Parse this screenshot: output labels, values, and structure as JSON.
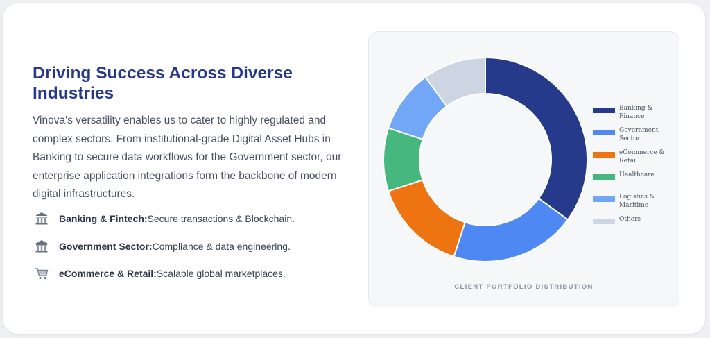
{
  "section": {
    "title": "Driving Success Across Diverse Industries",
    "description": "Vinova's versatility enables us to cater to highly regulated and complex sectors. From institutional-grade Digital Asset Hubs in Banking to secure data workflows for the Government sector, our enterprise application integrations form the backbone of modern digital infrastructures."
  },
  "features": [
    {
      "icon": "bank-icon",
      "bold": "Banking & Fintech:",
      "text": "Secure transactions & Blockchain."
    },
    {
      "icon": "government-building-icon",
      "bold": "Government Sector:",
      "text": "Compliance & data engineering."
    },
    {
      "icon": "shopping-cart-icon",
      "bold": "eCommerce & Retail:",
      "text": "Scalable global marketplaces."
    }
  ],
  "chart_data": {
    "type": "pie",
    "subtype": "doughnut",
    "caption": "CLIENT PORTFOLIO DISTRIBUTION",
    "legend_position": "right",
    "labels": [
      "Banking & Finance",
      "Government Sector",
      "eCommerce & Retail",
      "Healthcare",
      "Logistics & Maritime",
      "Others"
    ],
    "values": [
      35,
      20,
      15,
      10,
      10,
      10
    ],
    "colors": [
      "#263a8c",
      "#4e88f2",
      "#ee7411",
      "#46b77f",
      "#72a6f6",
      "#cdd5e2"
    ]
  }
}
